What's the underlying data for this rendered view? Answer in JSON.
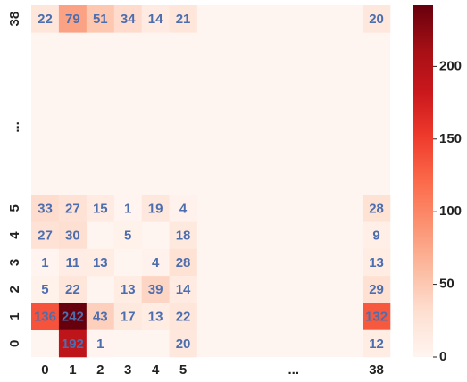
{
  "chart_data": {
    "type": "heatmap",
    "x_categories": [
      "0",
      "1",
      "2",
      "3",
      "4",
      "5",
      null,
      null,
      null,
      "...",
      null,
      null,
      "38"
    ],
    "y_categories": [
      "38",
      null,
      null,
      null,
      "...",
      null,
      null,
      "5",
      "4",
      "3",
      "2",
      "1",
      "0"
    ],
    "values": [
      [
        22,
        79,
        51,
        34,
        14,
        21,
        null,
        null,
        null,
        null,
        null,
        null,
        20
      ],
      [
        null,
        null,
        null,
        null,
        null,
        null,
        null,
        null,
        null,
        null,
        null,
        null,
        null
      ],
      [
        null,
        null,
        null,
        null,
        null,
        null,
        null,
        null,
        null,
        null,
        null,
        null,
        null
      ],
      [
        null,
        null,
        null,
        null,
        null,
        null,
        null,
        null,
        null,
        null,
        null,
        null,
        null
      ],
      [
        null,
        null,
        null,
        null,
        null,
        null,
        null,
        null,
        null,
        null,
        null,
        null,
        null
      ],
      [
        null,
        null,
        null,
        null,
        null,
        null,
        null,
        null,
        null,
        null,
        null,
        null,
        null
      ],
      [
        null,
        null,
        null,
        null,
        null,
        null,
        null,
        null,
        null,
        null,
        null,
        null,
        null
      ],
      [
        33,
        27,
        15,
        1,
        19,
        4,
        null,
        null,
        null,
        null,
        null,
        null,
        28
      ],
      [
        27,
        30,
        null,
        5,
        null,
        18,
        null,
        null,
        null,
        null,
        null,
        null,
        9
      ],
      [
        1,
        11,
        13,
        null,
        4,
        28,
        null,
        null,
        null,
        null,
        null,
        null,
        13
      ],
      [
        5,
        22,
        null,
        13,
        39,
        14,
        null,
        null,
        null,
        null,
        null,
        null,
        29
      ],
      [
        136,
        242,
        43,
        17,
        13,
        22,
        null,
        null,
        null,
        null,
        null,
        null,
        132
      ],
      [
        null,
        192,
        1,
        null,
        null,
        20,
        null,
        null,
        null,
        null,
        null,
        null,
        12
      ]
    ],
    "zlim": [
      0,
      242
    ],
    "zticks": [
      0,
      50,
      100,
      150,
      200
    ],
    "colors": [
      "#fff5f0",
      "#fee0d2",
      "#fcbba1",
      "#fc9272",
      "#fb6a4a",
      "#ef3b2c",
      "#cb181d",
      "#a50f15",
      "#67000d"
    ]
  }
}
